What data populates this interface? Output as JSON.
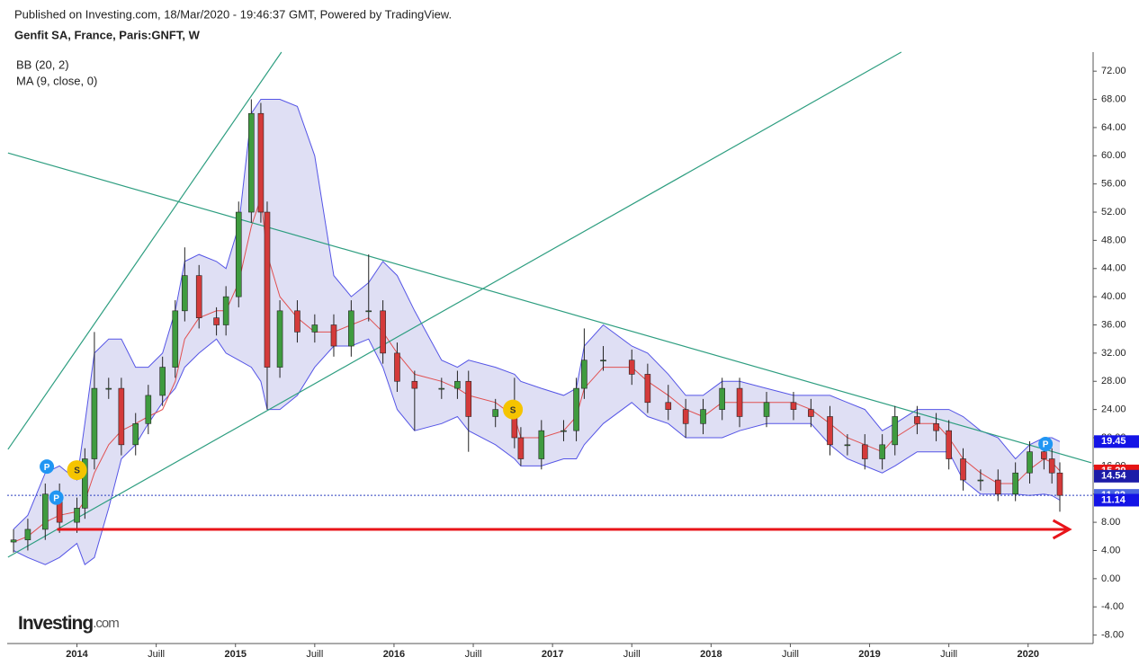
{
  "chart_data": {
    "type": "candlestick",
    "source": "Published on Investing.com, 18/Mar/2020 - 19:46:37 GMT, Powered by TradingView.",
    "title": "Genfit SA, France, Paris:GNFT, W",
    "indicators": [
      "BB (20, 2)",
      "MA (9, close, 0)"
    ],
    "logo": {
      "name": "Investing",
      "suffix": ".com"
    },
    "x": [
      2013.6,
      2013.69,
      2013.8,
      2013.89,
      2014.0,
      2014.05,
      2014.11,
      2014.2,
      2014.28,
      2014.37,
      2014.45,
      2014.54,
      2014.62,
      2014.68,
      2014.77,
      2014.88,
      2014.94,
      2015.02,
      2015.1,
      2015.16,
      2015.2,
      2015.28,
      2015.39,
      2015.5,
      2015.62,
      2015.73,
      2015.84,
      2015.93,
      2016.02,
      2016.13,
      2016.3,
      2016.4,
      2016.47,
      2016.64,
      2016.76,
      2016.8,
      2016.93,
      2017.07,
      2017.15,
      2017.2,
      2017.32,
      2017.5,
      2017.6,
      2017.73,
      2017.84,
      2017.95,
      2018.07,
      2018.18,
      2018.35,
      2018.52,
      2018.63,
      2018.75,
      2018.86,
      2018.97,
      2019.08,
      2019.16,
      2019.3,
      2019.42,
      2019.5,
      2019.59,
      2019.7,
      2019.81,
      2019.92,
      2020.01,
      2020.1,
      2020.15,
      2020.2
    ],
    "open": [
      5.2,
      5.5,
      7,
      12,
      8,
      10,
      17,
      27,
      27,
      19,
      22,
      26,
      30,
      38,
      43,
      37,
      36,
      40,
      52,
      66,
      52,
      30,
      38,
      35,
      36,
      33,
      38,
      38,
      32,
      28,
      27,
      27,
      28,
      23,
      24,
      20,
      17,
      21,
      21,
      27,
      31,
      31,
      29,
      25,
      24,
      22,
      24,
      27,
      23,
      25,
      24,
      23,
      19,
      19,
      17,
      19,
      23,
      22,
      21,
      17,
      14,
      14,
      12,
      15,
      18,
      17,
      15
    ],
    "high": [
      7,
      8.5,
      13.5,
      13.5,
      11.5,
      18.5,
      35,
      28.5,
      28.5,
      23.5,
      27.5,
      31.5,
      39.5,
      47,
      44.5,
      38.5,
      41.5,
      53.5,
      68,
      67.5,
      53.5,
      39.5,
      39.5,
      37.5,
      37.5,
      39.5,
      46,
      39.5,
      33.5,
      29.5,
      28.5,
      29.5,
      29.5,
      25.5,
      28.5,
      21.5,
      22.5,
      22.5,
      28.5,
      35.5,
      33,
      32.5,
      30.5,
      27.5,
      25.5,
      25.5,
      28.5,
      28.5,
      26.5,
      26.5,
      25.5,
      24.5,
      20.5,
      20.5,
      20.5,
      24.5,
      24.5,
      23.5,
      22.5,
      18.5,
      15.5,
      15.5,
      16.5,
      19.5,
      19.5,
      18.5,
      16.5
    ],
    "low": [
      3.7,
      4,
      5.5,
      6.5,
      6.5,
      8.5,
      15.5,
      25.5,
      17.5,
      17.5,
      20.5,
      24.5,
      28.5,
      36.5,
      35.5,
      34.5,
      34.5,
      38.5,
      50.5,
      50.5,
      24,
      28.5,
      33.5,
      33.5,
      31.5,
      31.5,
      36.5,
      30.5,
      26.5,
      21,
      25.5,
      25.5,
      18,
      21.5,
      18.5,
      16,
      15.5,
      19.5,
      19.5,
      25.5,
      29.5,
      27.5,
      23.5,
      22.5,
      20,
      20.5,
      22.5,
      21.5,
      21.5,
      22.5,
      21.5,
      17.5,
      17.5,
      15.5,
      15.5,
      17.5,
      20.5,
      19.5,
      15.5,
      12.5,
      12.5,
      11,
      11,
      13.5,
      15.5,
      13.5,
      9.5
    ],
    "close": [
      5.5,
      7,
      12,
      8,
      10,
      17,
      27,
      27,
      19,
      22,
      26,
      30,
      38,
      43,
      37,
      36,
      40,
      52,
      66,
      52,
      30,
      38,
      35,
      36,
      33,
      38,
      38,
      32,
      28,
      27,
      27,
      28,
      23,
      24,
      20,
      17,
      21,
      21,
      27,
      31,
      31,
      29,
      25,
      24,
      22,
      24,
      27,
      23,
      25,
      24,
      23,
      19,
      19,
      17,
      19,
      23,
      22,
      21,
      17,
      14,
      14,
      12,
      15,
      18,
      17,
      15,
      11.82
    ],
    "up_color": "#3f9b3f",
    "down_color": "#d43a3a",
    "bb_upper": [
      7,
      9,
      15,
      16,
      14,
      22,
      32,
      34,
      34,
      30,
      30,
      32,
      38,
      45,
      46,
      45,
      44,
      50,
      66,
      68,
      68,
      68,
      67,
      60,
      43,
      40,
      42,
      45,
      43,
      38,
      31,
      30,
      31,
      30,
      29,
      28,
      27,
      26,
      27,
      33,
      36,
      33,
      32,
      29,
      26,
      26,
      28,
      28,
      27,
      26,
      26,
      26,
      25,
      24,
      21,
      22,
      24,
      24,
      24,
      23,
      21,
      20,
      17,
      19,
      20,
      20,
      19.45
    ],
    "bb_lower": [
      4,
      3,
      2,
      3,
      5,
      2,
      3,
      10,
      17,
      19,
      22,
      25,
      27,
      30,
      32,
      34,
      32,
      31,
      30,
      28,
      24,
      24,
      26,
      30,
      33,
      33,
      34,
      30,
      24,
      21,
      22,
      23,
      21,
      19,
      17,
      16,
      16,
      17,
      17,
      19,
      22,
      25,
      23,
      22,
      20,
      20,
      20,
      21,
      22,
      22,
      22,
      19,
      17,
      16,
      15,
      16,
      18,
      18,
      18,
      14,
      12,
      12,
      12,
      11.8,
      12,
      11.8,
      11.14
    ],
    "bb_color": "#5555e6",
    "bb_fill": "#b8b8e6",
    "ma": [
      5.2,
      6,
      8,
      9,
      9.5,
      11,
      15,
      19,
      21,
      22,
      23,
      24,
      28,
      34,
      37,
      38,
      38,
      42,
      50,
      54,
      46,
      40,
      37,
      35,
      35,
      36,
      37,
      35,
      32,
      29,
      28,
      27,
      26,
      25,
      23,
      20,
      20,
      21,
      23,
      27,
      30,
      30,
      28,
      26,
      24,
      23,
      25,
      25,
      25,
      25,
      24,
      22,
      20,
      19,
      18,
      20,
      22,
      22,
      20,
      17,
      15,
      13.5,
      13.5,
      15.5,
      17,
      16.5,
      15.29
    ],
    "ma_color": "#e05050",
    "xlim": [
      2013.56,
      2020.41
    ],
    "ylim": [
      -9.2,
      74.7
    ],
    "xticks": [
      2014,
      {
        "value": 2014.5,
        "label": "Juill"
      },
      2015,
      {
        "value": 2015.5,
        "label": "Juill"
      },
      2016,
      {
        "value": 2016.5,
        "label": "Juill"
      },
      2017,
      {
        "value": 2017.5,
        "label": "Juill"
      },
      2018,
      {
        "value": 2018.5,
        "label": "Juill"
      },
      2019,
      {
        "value": 2019.5,
        "label": "Juill"
      },
      2020
    ],
    "yticks": [
      {
        "value": -8,
        "label": "-8.00"
      },
      {
        "value": -4,
        "label": "-4.00"
      },
      {
        "value": 0,
        "label": "0.00"
      },
      {
        "value": 4,
        "label": "4.00"
      },
      {
        "value": 8,
        "label": "8.00"
      },
      {
        "value": 12,
        "label": "12.00"
      },
      {
        "value": 16,
        "label": "16.00"
      },
      {
        "value": 20,
        "label": "20.00"
      },
      {
        "value": 24,
        "label": "24.00"
      },
      {
        "value": 28,
        "label": "28.00"
      },
      {
        "value": 32,
        "label": "32.00"
      },
      {
        "value": 36,
        "label": "36.00"
      },
      {
        "value": 40,
        "label": "40.00"
      },
      {
        "value": 44,
        "label": "44.00"
      },
      {
        "value": 48,
        "label": "48.00"
      },
      {
        "value": 52,
        "label": "52.00"
      },
      {
        "value": 56,
        "label": "56.00"
      },
      {
        "value": 60,
        "label": "60.00"
      },
      {
        "value": 64,
        "label": "64.00"
      },
      {
        "value": 68,
        "label": "68.00"
      },
      {
        "value": 72,
        "label": "72.00"
      }
    ],
    "trendlines": [
      {
        "x": [
          2013.565,
          2015.29
        ],
        "y": [
          18.35,
          74.7
        ],
        "color": "#2e9e80"
      },
      {
        "x": [
          2013.565,
          2019.2
        ],
        "y": [
          3.06,
          74.7
        ],
        "color": "#2e9e80"
      },
      {
        "x": [
          2013.565,
          2020.4
        ],
        "y": [
          60.4,
          16.44
        ],
        "color": "#2e9e80"
      }
    ],
    "arrow": {
      "x": [
        2013.875,
        2020.26
      ],
      "y": [
        7,
        7
      ],
      "color": "#e8141a"
    },
    "events": [
      {
        "x": 2013.81,
        "y": 15.9,
        "label": "P",
        "color": "#2196f3"
      },
      {
        "x": 2014.0,
        "y": 15.4,
        "label": "S",
        "color": "#f5c400"
      },
      {
        "x": 2013.87,
        "y": 11.5,
        "label": "P",
        "color": "#2196f3"
      },
      {
        "x": 2016.75,
        "y": 24.0,
        "label": "S",
        "color": "#f5c400"
      },
      {
        "x": 2020.11,
        "y": 19.1,
        "label": "P",
        "color": "#2196f3"
      }
    ],
    "price_line": {
      "value": 11.82,
      "color": "#2a3fbf"
    },
    "axis_markers": [
      {
        "value": 19.45,
        "color": "#1414e6"
      },
      {
        "value": 15.29,
        "color": "#e61414"
      },
      {
        "value": 14.54,
        "color": "#1c1ca8"
      },
      {
        "value": 11.82,
        "color": "#4a66e0"
      },
      {
        "value": 11.14,
        "color": "#1414e6"
      }
    ]
  }
}
